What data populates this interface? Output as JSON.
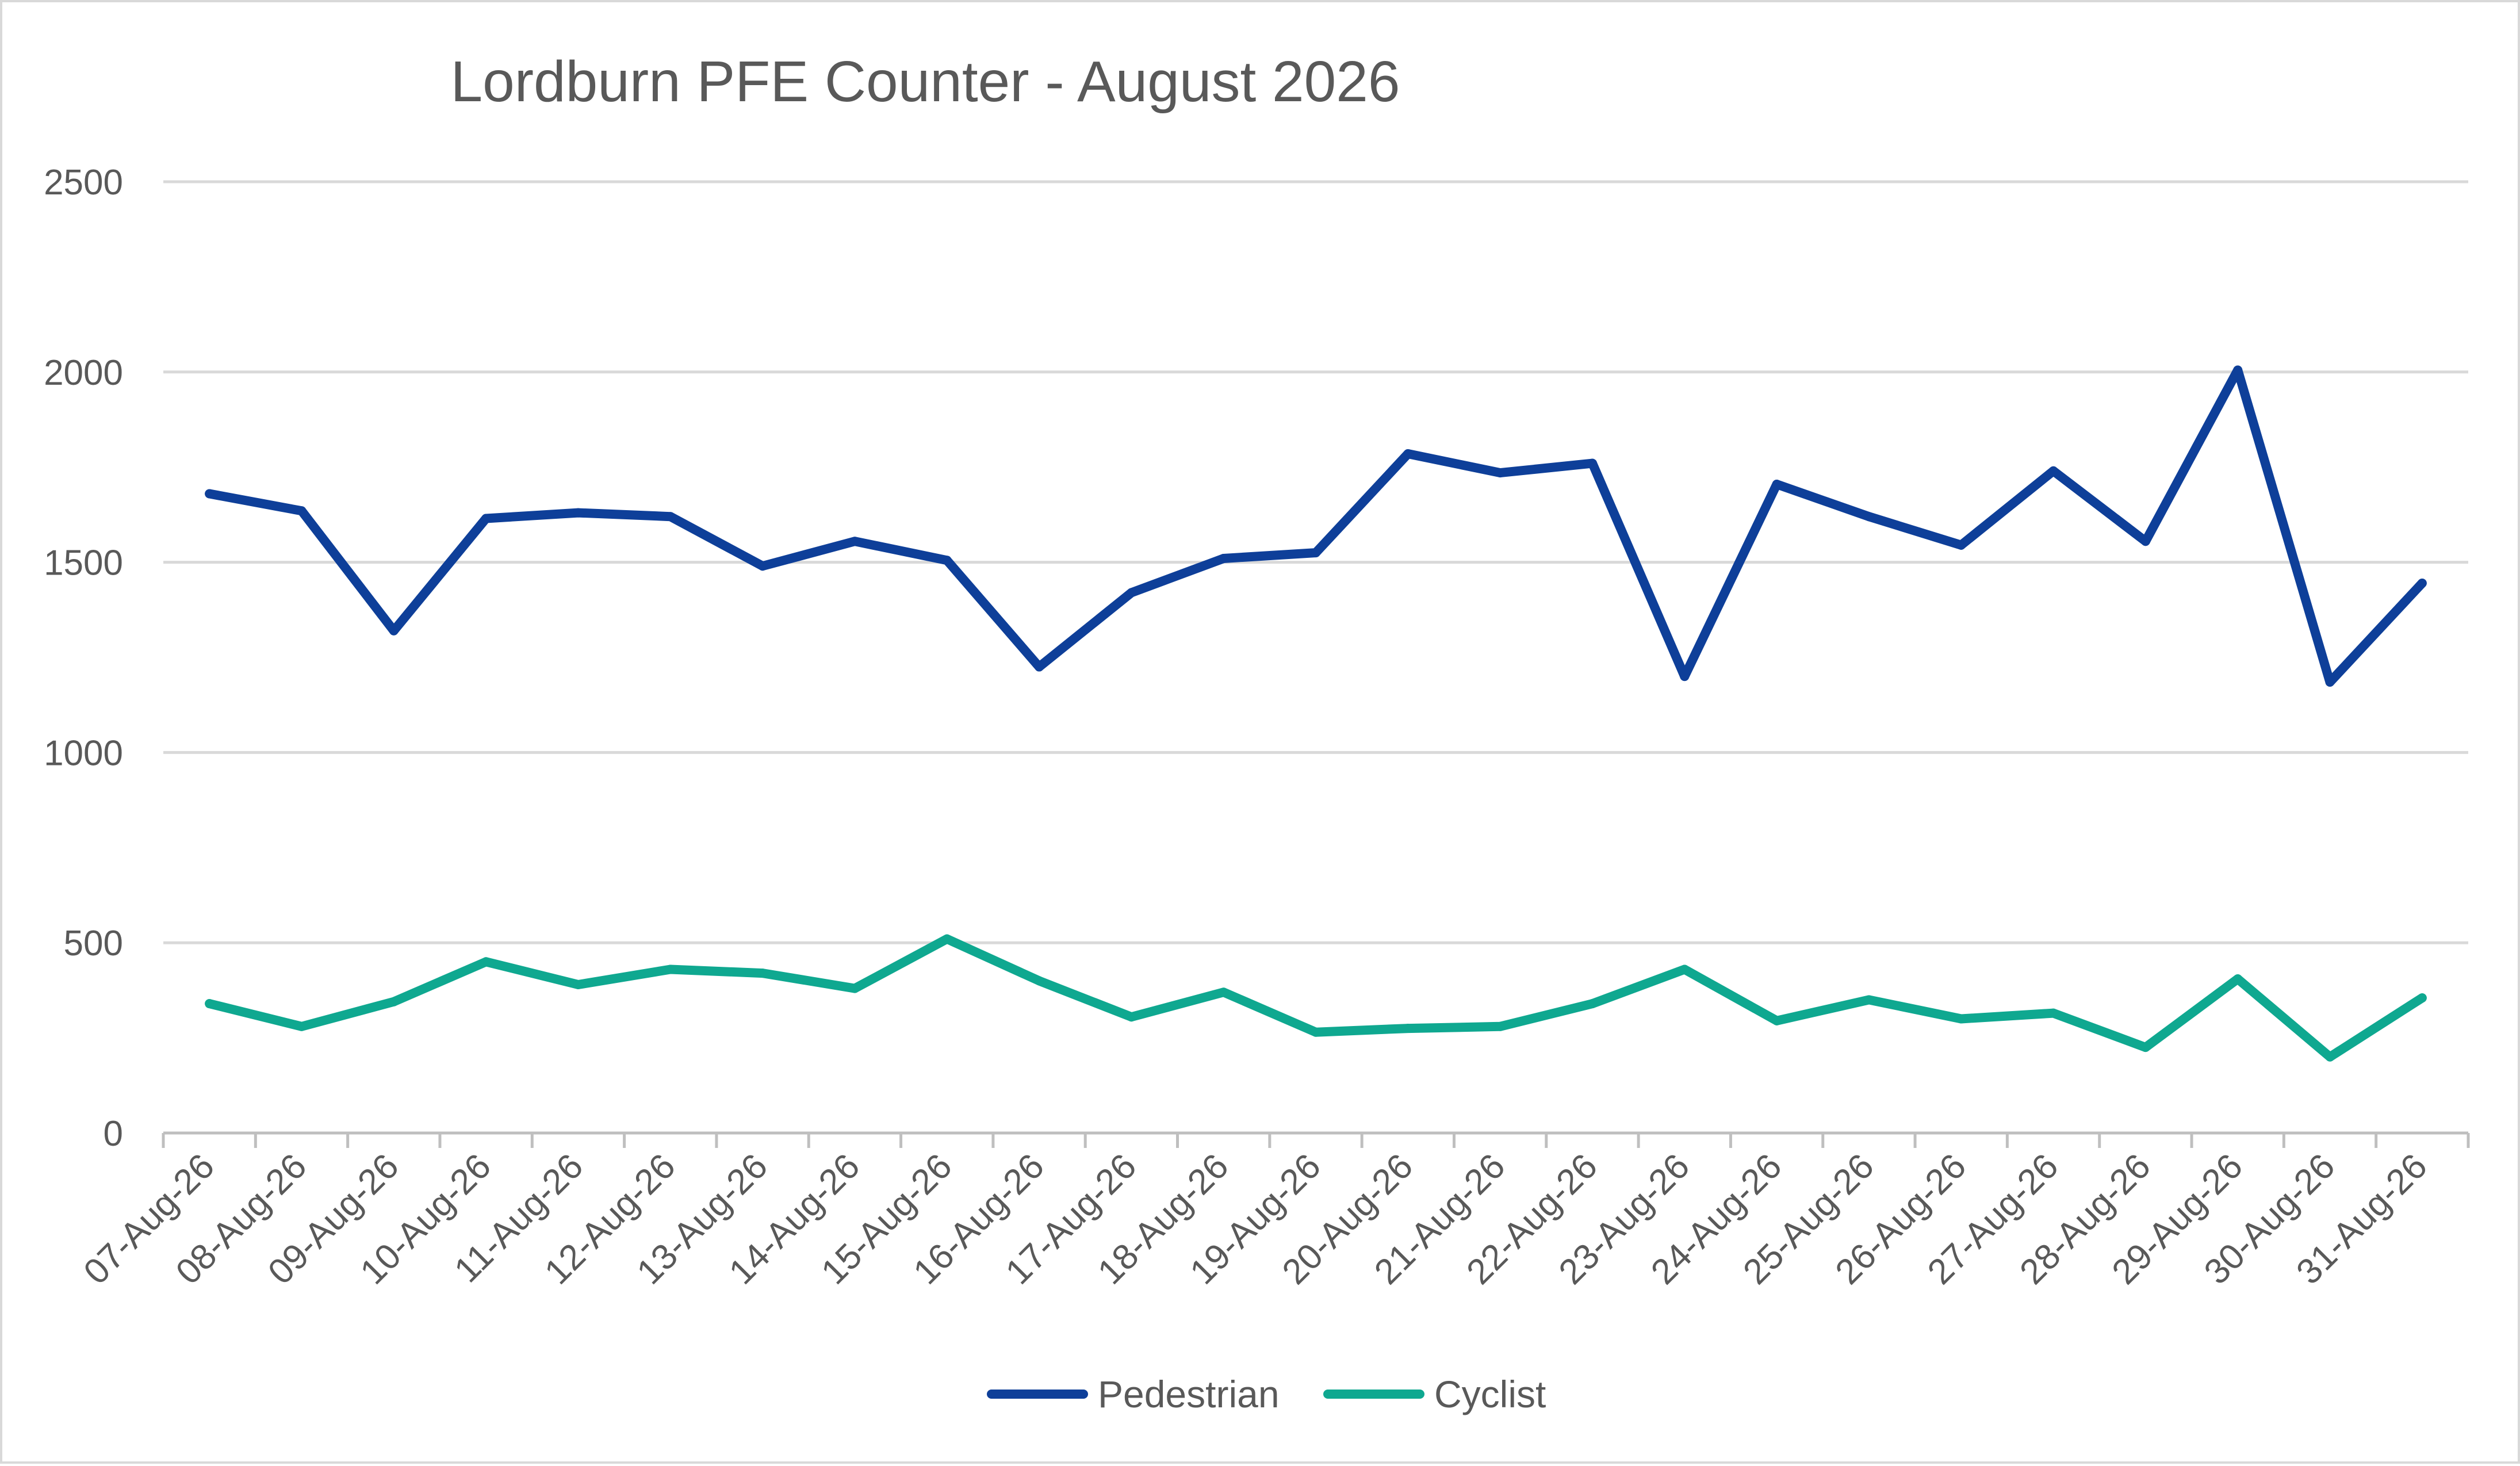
{
  "chart_data": {
    "type": "line",
    "title": "Lordburn PFE Counter - August 2026",
    "xlabel": "",
    "ylabel": "",
    "ylim": [
      0,
      2500
    ],
    "yticks": [
      0,
      500,
      1000,
      1500,
      2000,
      2500
    ],
    "grid": true,
    "legend_position": "bottom",
    "categories": [
      "07-Aug-26",
      "08-Aug-26",
      "09-Aug-26",
      "10-Aug-26",
      "11-Aug-26",
      "12-Aug-26",
      "13-Aug-26",
      "14-Aug-26",
      "15-Aug-26",
      "16-Aug-26",
      "17-Aug-26",
      "18-Aug-26",
      "19-Aug-26",
      "20-Aug-26",
      "21-Aug-26",
      "22-Aug-26",
      "23-Aug-26",
      "24-Aug-26",
      "25-Aug-26",
      "26-Aug-26",
      "27-Aug-26",
      "28-Aug-26",
      "29-Aug-26",
      "30-Aug-26",
      "31-Aug-26"
    ],
    "series": [
      {
        "name": "Pedestrian",
        "color": "#0e3f99",
        "values": [
          1680,
          1635,
          1320,
          1615,
          1630,
          1620,
          1490,
          1555,
          1505,
          1225,
          1420,
          1510,
          1525,
          1785,
          1735,
          1760,
          1200,
          1705,
          1620,
          1545,
          1740,
          1555,
          2005,
          1185,
          1445
        ]
      },
      {
        "name": "Cyclist",
        "color": "#0fa890",
        "values": [
          340,
          280,
          345,
          450,
          390,
          430,
          420,
          380,
          510,
          400,
          305,
          370,
          265,
          275,
          280,
          340,
          430,
          295,
          350,
          300,
          315,
          225,
          405,
          200,
          355
        ]
      }
    ]
  }
}
